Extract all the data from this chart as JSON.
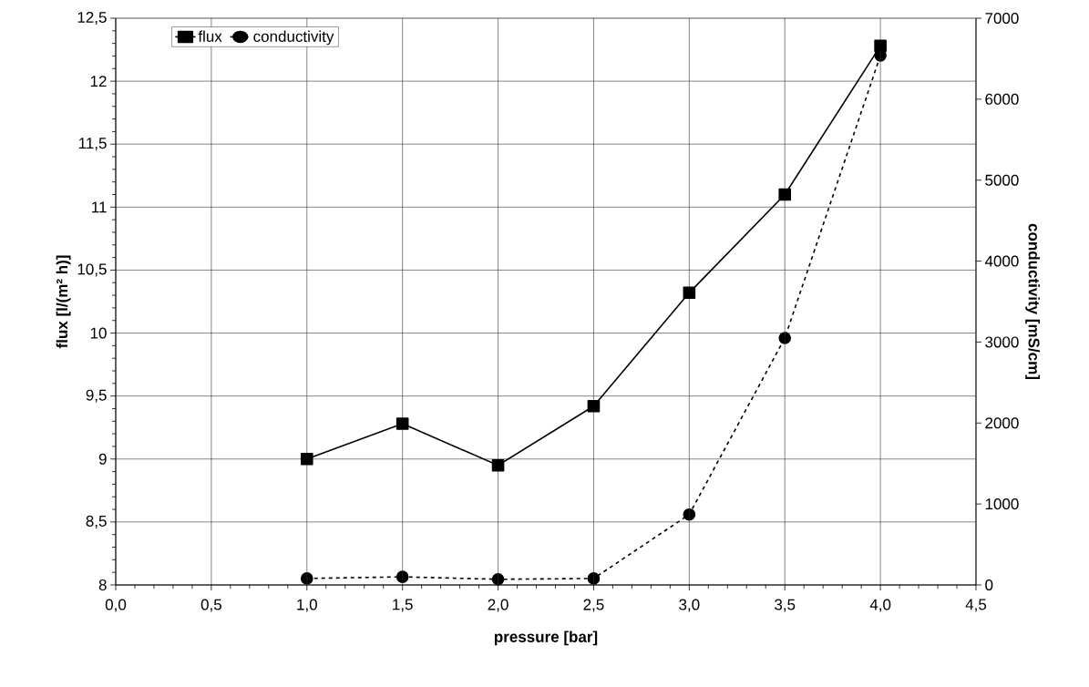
{
  "chart_data": {
    "type": "line",
    "xlabel": "pressure [bar]",
    "ylabel": "flux [l/(m² h)]",
    "y2label": "conductivity [mS/cm]",
    "xlim": [
      0,
      4.5
    ],
    "xticks": [
      {
        "value": 0,
        "label": "0,0"
      },
      {
        "value": 0.5,
        "label": "0,5"
      },
      {
        "value": 1,
        "label": "1,0"
      },
      {
        "value": 1.5,
        "label": "1,5"
      },
      {
        "value": 2,
        "label": "2,0"
      },
      {
        "value": 2.5,
        "label": "2,5"
      },
      {
        "value": 3,
        "label": "3,0"
      },
      {
        "value": 3.5,
        "label": "3,5"
      },
      {
        "value": 4,
        "label": "4,0"
      },
      {
        "value": 4.5,
        "label": "4,5"
      }
    ],
    "ylim": [
      8,
      12.5
    ],
    "yticks": [
      8,
      {
        "value": 8.5,
        "label": "8,5"
      },
      9,
      {
        "value": 9.5,
        "label": "9,5"
      },
      10,
      {
        "value": 10.5,
        "label": "10,5"
      },
      11,
      {
        "value": 11.5,
        "label": "11,5"
      },
      12,
      {
        "value": 12.5,
        "label": "12,5"
      }
    ],
    "y2lim": [
      0,
      7000
    ],
    "y2ticks": [
      0,
      1000,
      2000,
      3000,
      4000,
      5000,
      6000,
      7000
    ],
    "x": [
      1,
      1.5,
      2,
      2.5,
      3,
      3.5,
      4
    ],
    "series": [
      {
        "name": "flux",
        "color": "#000000",
        "marker": "square",
        "line_style": "solid",
        "values": [
          9.0,
          9.28,
          8.95,
          9.42,
          10.32,
          11.1,
          12.28
        ]
      },
      {
        "name": "conductivity",
        "color": "#000000",
        "marker": "circle",
        "line_style": "dashed",
        "axis": "y2",
        "values": [
          80,
          100,
          70,
          80,
          870,
          3050,
          6540
        ]
      }
    ],
    "grid": true,
    "legend": "top left"
  }
}
